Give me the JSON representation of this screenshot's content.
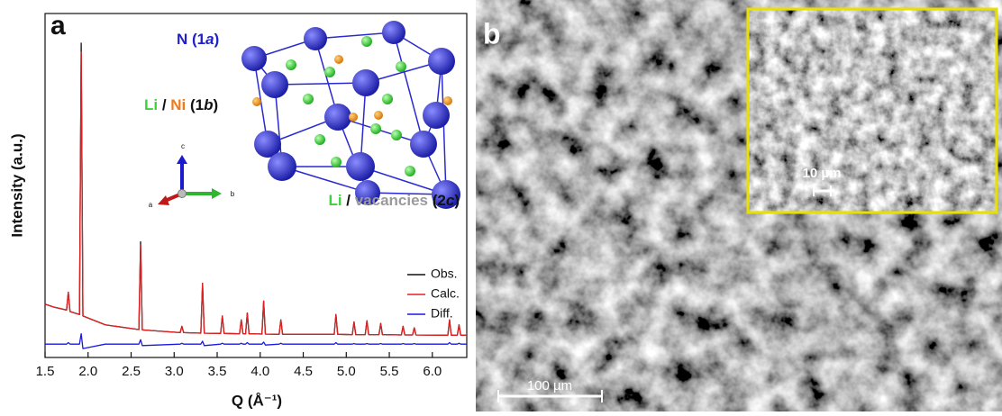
{
  "chart_data": {
    "type": "line",
    "panel_label": "a",
    "xlabel": "Q (Å⁻¹)",
    "ylabel": "Intensity (a.u.)",
    "xlim": [
      1.5,
      6.4
    ],
    "ylim": [
      -0.06,
      1.1
    ],
    "xticks": [
      1.5,
      {
        "value": 2,
        "label": "2.0"
      },
      2.5,
      {
        "value": 3,
        "label": "3.0"
      },
      3.5,
      {
        "value": 4,
        "label": "4.0"
      },
      4.5,
      {
        "value": 5,
        "label": "5.0"
      },
      5.5,
      {
        "value": 6,
        "label": "6.0"
      }
    ],
    "legend": "lower right",
    "x": [
      1.5,
      1.6,
      1.75,
      1.77,
      1.79,
      1.9,
      1.92,
      1.94,
      2.2,
      2.59,
      2.61,
      2.63,
      3.07,
      3.09,
      3.11,
      3.31,
      3.33,
      3.35,
      3.54,
      3.56,
      3.58,
      3.76,
      3.78,
      3.8,
      3.83,
      3.85,
      3.87,
      4.02,
      4.04,
      4.06,
      4.22,
      4.24,
      4.26,
      4.86,
      4.88,
      4.9,
      5.07,
      5.09,
      5.11,
      5.22,
      5.24,
      5.26,
      5.38,
      5.4,
      5.42,
      5.64,
      5.66,
      5.68,
      5.77,
      5.79,
      5.81,
      6.18,
      6.2,
      6.22,
      6.29,
      6.31,
      6.33,
      6.4
    ],
    "series": [
      {
        "name": "Obs.",
        "color": "#111111",
        "values": [
          0.12,
          0.11,
          0.1,
          0.16,
          0.095,
          0.085,
          1.0,
          0.08,
          0.05,
          0.034,
          0.33,
          0.033,
          0.024,
          0.045,
          0.024,
          0.022,
          0.19,
          0.022,
          0.021,
          0.08,
          0.021,
          0.02,
          0.067,
          0.02,
          0.02,
          0.09,
          0.02,
          0.019,
          0.13,
          0.019,
          0.018,
          0.067,
          0.018,
          0.018,
          0.085,
          0.018,
          0.017,
          0.06,
          0.017,
          0.017,
          0.064,
          0.017,
          0.017,
          0.055,
          0.017,
          0.016,
          0.045,
          0.016,
          0.016,
          0.04,
          0.016,
          0.015,
          0.067,
          0.015,
          0.015,
          0.05,
          0.015,
          0.015
        ]
      },
      {
        "name": "Calc.",
        "color": "#e02020",
        "values": [
          0.12,
          0.11,
          0.1,
          0.16,
          0.095,
          0.085,
          0.97,
          0.08,
          0.05,
          0.034,
          0.32,
          0.033,
          0.024,
          0.045,
          0.024,
          0.022,
          0.19,
          0.022,
          0.021,
          0.08,
          0.021,
          0.02,
          0.067,
          0.02,
          0.02,
          0.09,
          0.02,
          0.019,
          0.13,
          0.019,
          0.018,
          0.067,
          0.018,
          0.018,
          0.085,
          0.018,
          0.017,
          0.06,
          0.017,
          0.017,
          0.064,
          0.017,
          0.017,
          0.055,
          0.017,
          0.016,
          0.045,
          0.016,
          0.016,
          0.04,
          0.016,
          0.015,
          0.067,
          0.015,
          0.015,
          0.05,
          0.015,
          0.015
        ]
      },
      {
        "name": "Diff.",
        "color": "#1a1ae0",
        "values": [
          -0.015,
          -0.015,
          -0.015,
          -0.01,
          -0.015,
          -0.015,
          0.02,
          -0.03,
          -0.015,
          -0.015,
          0.0,
          -0.02,
          -0.015,
          -0.012,
          -0.015,
          -0.015,
          -0.005,
          -0.02,
          -0.015,
          -0.012,
          -0.015,
          -0.015,
          -0.012,
          -0.015,
          -0.015,
          -0.01,
          -0.015,
          -0.015,
          -0.008,
          -0.018,
          -0.015,
          -0.012,
          -0.015,
          -0.015,
          -0.01,
          -0.015,
          -0.015,
          -0.013,
          -0.015,
          -0.015,
          -0.013,
          -0.015,
          -0.015,
          -0.013,
          -0.015,
          -0.015,
          -0.013,
          -0.015,
          -0.015,
          -0.013,
          -0.015,
          -0.015,
          -0.01,
          -0.015,
          -0.015,
          -0.012,
          -0.015,
          -0.015
        ]
      }
    ]
  },
  "structure": {
    "labels": [
      {
        "parts": [
          "N (1",
          "a",
          ")"
        ]
      },
      {
        "parts": [
          "Li",
          " / ",
          "Ni",
          " (1",
          "b",
          ")"
        ]
      },
      {
        "parts": [
          "Li",
          " / ",
          "vacancies",
          " (2",
          "c",
          ")"
        ]
      }
    ],
    "axes": [
      "c",
      "a",
      "b"
    ]
  },
  "micrograph": {
    "panel_label": "b",
    "scale_bar": "100 µm",
    "inset_scale_bar": "10 µm"
  }
}
